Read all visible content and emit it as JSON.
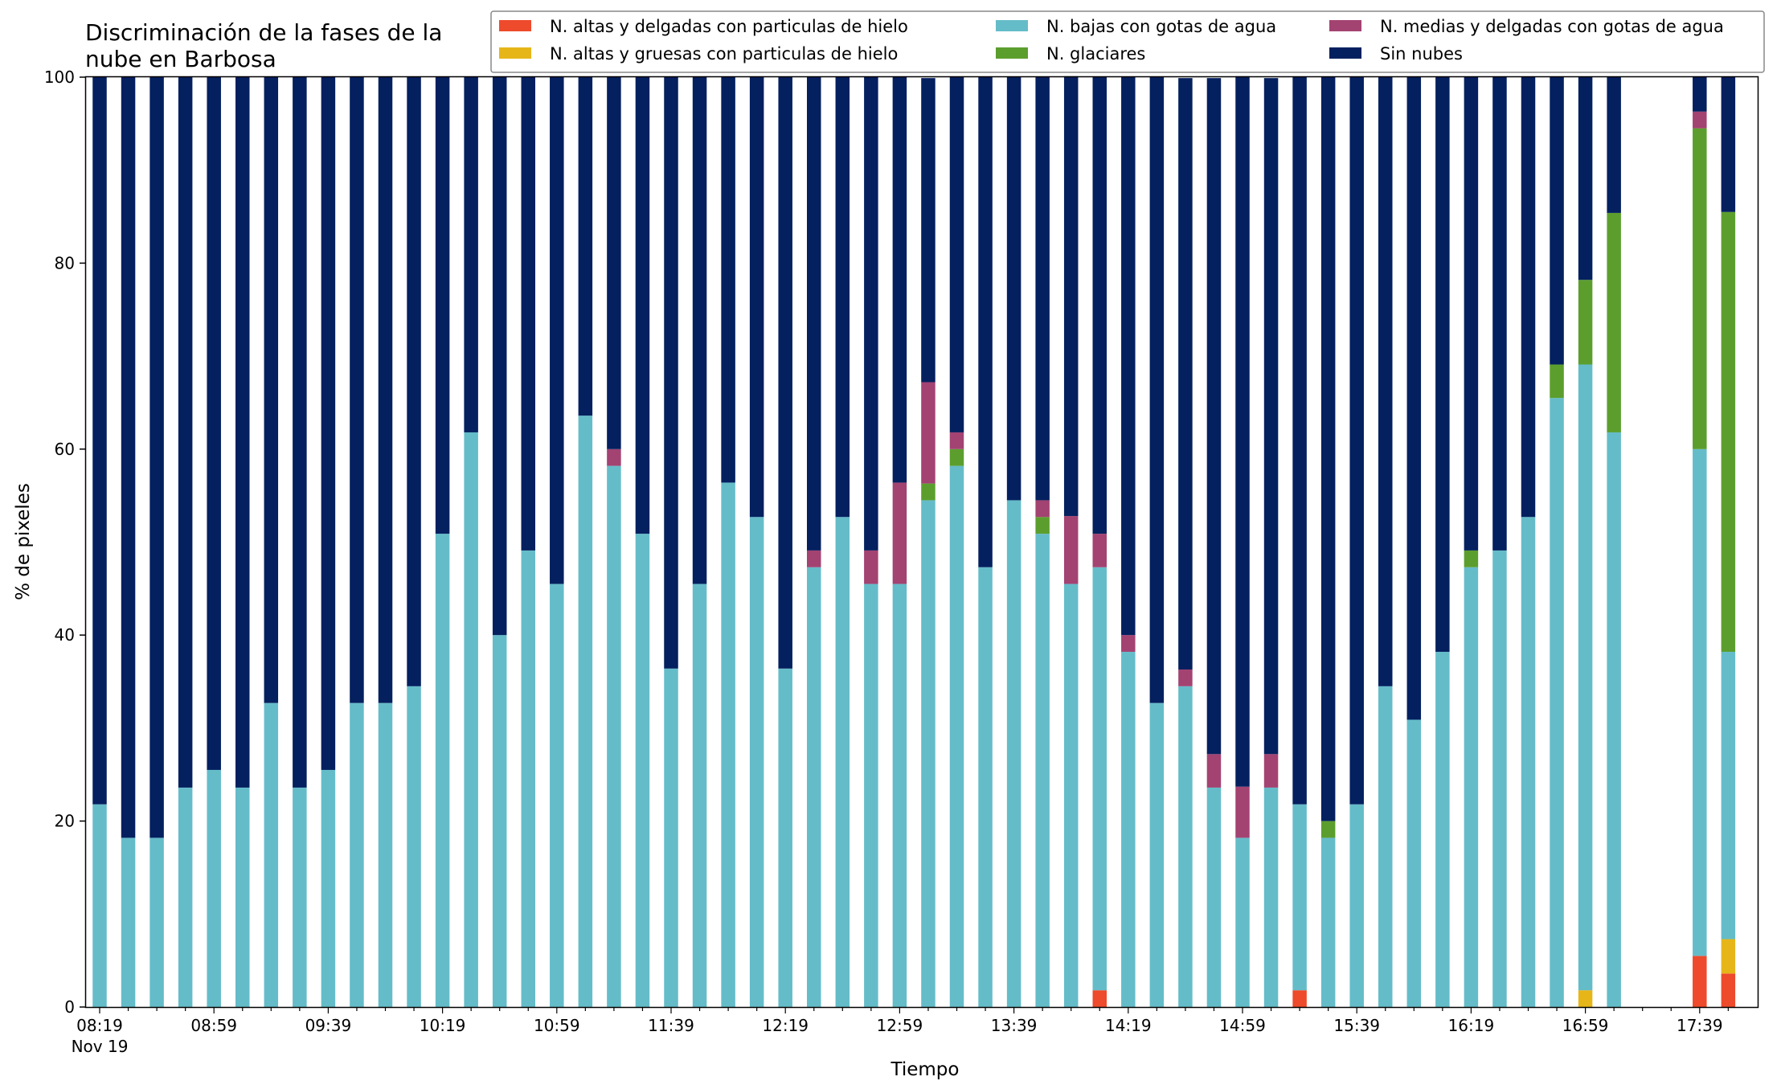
{
  "chart_data": {
    "type": "bar",
    "stacked": true,
    "title_line1": "Discriminación de la fases de la",
    "title_line2": "nube en Barbosa",
    "xlabel": "Tiempo",
    "ylabel": "% de pixeles",
    "ylim": [
      0,
      100
    ],
    "yticks": [
      "0",
      "20",
      "40",
      "60",
      "80",
      "100"
    ],
    "xtick_major_labels": [
      "08:19",
      "08:59",
      "09:39",
      "10:19",
      "10:59",
      "11:39",
      "12:19",
      "12:59",
      "13:39",
      "14:19",
      "14:59",
      "15:39",
      "16:19",
      "16:59",
      "17:39"
    ],
    "xtick_date_label": "Nov 19",
    "time_start": "08:19",
    "time_step_minutes": 10,
    "legend_position": "top-right",
    "categories": [
      "08:19",
      "08:29",
      "08:39",
      "08:49",
      "08:59",
      "09:09",
      "09:19",
      "09:29",
      "09:39",
      "09:49",
      "09:59",
      "10:09",
      "10:19",
      "10:29",
      "10:39",
      "10:49",
      "10:59",
      "11:09",
      "11:19",
      "11:29",
      "11:39",
      "11:49",
      "11:59",
      "12:09",
      "12:19",
      "12:29",
      "12:39",
      "12:49",
      "12:59",
      "13:09",
      "13:19",
      "13:29",
      "13:39",
      "13:49",
      "13:59",
      "14:09",
      "14:19",
      "14:29",
      "14:39",
      "14:49",
      "14:59",
      "15:09",
      "15:19",
      "15:29",
      "15:39",
      "15:49",
      "15:59",
      "16:09",
      "16:19",
      "16:29",
      "16:39",
      "16:49",
      "16:59",
      "17:09",
      "17:19",
      "17:29",
      "17:39",
      "17:49"
    ],
    "series": [
      {
        "name": "N. altas y delgadas con particulas de hielo",
        "color": "#ee4a2c",
        "values": [
          0,
          0,
          0,
          0,
          0,
          0,
          0,
          0,
          0,
          0,
          0,
          0,
          0,
          0,
          0,
          0,
          0,
          0,
          0,
          0,
          0,
          0,
          0,
          0,
          0,
          0,
          0,
          0,
          0,
          0,
          0,
          0,
          0,
          0,
          0,
          1.8,
          0,
          0,
          0,
          0,
          0,
          0,
          1.8,
          0,
          0,
          0,
          0,
          0,
          0,
          0,
          0,
          0,
          0,
          0,
          null,
          null,
          5.5,
          3.6
        ]
      },
      {
        "name": "N. altas y gruesas con particulas de hielo",
        "color": "#e6b619",
        "values": [
          0,
          0,
          0,
          0,
          0,
          0,
          0,
          0,
          0,
          0,
          0,
          0,
          0,
          0,
          0,
          0,
          0,
          0,
          0,
          0,
          0,
          0,
          0,
          0,
          0,
          0,
          0,
          0,
          0,
          0,
          0,
          0,
          0,
          0,
          0,
          0,
          0,
          0,
          0,
          0,
          0,
          0,
          0,
          0,
          0,
          0,
          0,
          0,
          0,
          0,
          0,
          0,
          1.8,
          0,
          null,
          null,
          0,
          3.7
        ]
      },
      {
        "name": "N. bajas con gotas de agua",
        "color": "#65bcc9",
        "values": [
          21.8,
          18.2,
          18.2,
          23.6,
          25.5,
          23.6,
          32.7,
          23.6,
          25.5,
          32.7,
          32.7,
          34.5,
          50.9,
          61.8,
          40.0,
          49.1,
          45.5,
          63.6,
          58.2,
          50.9,
          36.4,
          45.5,
          56.4,
          52.7,
          36.4,
          47.3,
          52.7,
          45.5,
          45.5,
          54.5,
          58.2,
          47.3,
          54.5,
          50.9,
          45.5,
          45.5,
          38.2,
          32.7,
          34.5,
          23.6,
          18.2,
          23.6,
          20.0,
          18.2,
          21.8,
          34.5,
          30.9,
          38.2,
          47.3,
          49.1,
          52.7,
          65.5,
          67.3,
          61.8,
          null,
          null,
          54.5,
          30.9
        ]
      },
      {
        "name": "N. glaciares",
        "color": "#5c9e2e",
        "values": [
          0,
          0,
          0,
          0,
          0,
          0,
          0,
          0,
          0,
          0,
          0,
          0,
          0,
          0,
          0,
          0,
          0,
          0,
          0,
          0,
          0,
          0,
          0,
          0,
          0,
          0,
          0,
          0,
          0,
          1.8,
          1.8,
          0,
          0,
          1.8,
          0,
          0,
          0,
          0,
          0,
          0,
          0,
          0,
          0,
          1.8,
          0,
          0,
          0,
          0,
          1.8,
          0,
          0,
          3.6,
          9.1,
          23.6,
          null,
          null,
          34.5,
          47.3
        ]
      },
      {
        "name": "N. medias y delgadas con gotas de agua",
        "color": "#a34372",
        "values": [
          0,
          0,
          0,
          0,
          0,
          0,
          0,
          0,
          0,
          0,
          0,
          0,
          0,
          0,
          0,
          0,
          0,
          0,
          1.8,
          0,
          0,
          0,
          0,
          0,
          0,
          1.8,
          0,
          3.6,
          10.9,
          10.9,
          1.8,
          0,
          0,
          1.8,
          7.3,
          3.6,
          1.8,
          0,
          1.8,
          3.6,
          5.5,
          3.6,
          0,
          0,
          0,
          0,
          0,
          0,
          0,
          0,
          0,
          0,
          0,
          0,
          null,
          null,
          1.8,
          0
        ]
      },
      {
        "name": "Sin nubes",
        "color": "#04205f",
        "values": [
          78.2,
          81.8,
          81.8,
          76.4,
          74.5,
          76.4,
          67.3,
          76.4,
          74.5,
          67.3,
          67.3,
          65.5,
          49.1,
          38.2,
          60.0,
          50.9,
          54.5,
          36.4,
          40.0,
          49.1,
          63.6,
          54.5,
          43.6,
          47.3,
          63.6,
          50.9,
          47.3,
          50.9,
          43.6,
          32.7,
          38.2,
          52.7,
          45.5,
          45.5,
          47.3,
          49.1,
          60.0,
          67.3,
          63.6,
          72.7,
          76.4,
          72.7,
          78.2,
          80.0,
          78.2,
          65.5,
          69.1,
          61.8,
          50.9,
          50.9,
          47.3,
          30.9,
          21.8,
          14.6,
          null,
          null,
          3.7,
          14.5
        ]
      }
    ]
  }
}
